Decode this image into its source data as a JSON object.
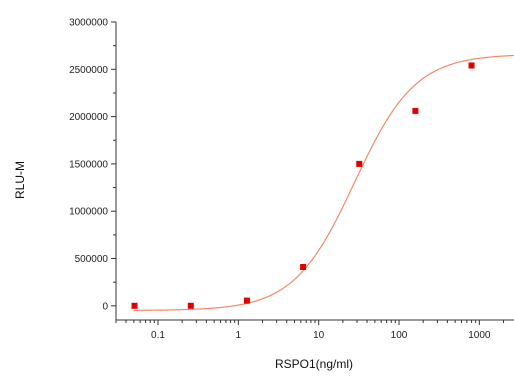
{
  "chart_data": {
    "type": "scatter",
    "xlabel": "RSPO1(ng/ml)",
    "ylabel": "RLU-M",
    "x_scale": "log",
    "xlim": [
      0.03,
      2700
    ],
    "ylim": [
      -150000,
      3000000
    ],
    "x_ticks": [
      {
        "value": 0.1,
        "label": "0.1"
      },
      {
        "value": 1,
        "label": "1"
      },
      {
        "value": 10,
        "label": "10"
      },
      {
        "value": 100,
        "label": "100"
      },
      {
        "value": 1000,
        "label": "1000"
      }
    ],
    "y_ticks": [
      {
        "value": 0,
        "label": "0"
      },
      {
        "value": 500000,
        "label": "500000"
      },
      {
        "value": 1000000,
        "label": "1000000"
      },
      {
        "value": 1500000,
        "label": "1500000"
      },
      {
        "value": 2000000,
        "label": "2000000"
      },
      {
        "value": 2500000,
        "label": "2500000"
      },
      {
        "value": 3000000,
        "label": "3000000"
      }
    ],
    "points": [
      {
        "x": 0.051,
        "y": 0
      },
      {
        "x": 0.256,
        "y": 0
      },
      {
        "x": 1.28,
        "y": 55000
      },
      {
        "x": 6.4,
        "y": 410000
      },
      {
        "x": 32,
        "y": 1500000
      },
      {
        "x": 160,
        "y": 2060000
      },
      {
        "x": 800,
        "y": 2540000
      }
    ],
    "fit_curve": {
      "model": "4PL",
      "bottom": -50000,
      "top": 2660000,
      "ec50": 28,
      "hill": 1.15
    },
    "marker_color": "#e00000",
    "curve_color": "#f08a6a",
    "axis_color": "#333333",
    "grid": false,
    "legend": "none"
  }
}
